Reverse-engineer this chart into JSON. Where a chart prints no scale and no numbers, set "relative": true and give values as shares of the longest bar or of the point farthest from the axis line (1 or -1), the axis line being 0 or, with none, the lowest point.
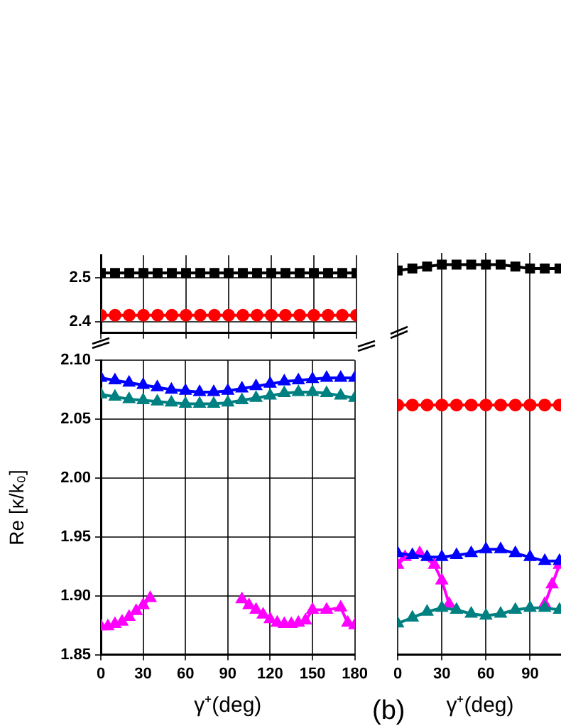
{
  "chart_data": [
    {
      "type": "line",
      "x": [
        0,
        10,
        20,
        30,
        40,
        50,
        60,
        70,
        80,
        90,
        100,
        110,
        120,
        130,
        140,
        150,
        160,
        170,
        180
      ],
      "xlim": [
        0,
        180
      ],
      "xticks": [
        0,
        30,
        60,
        90,
        120,
        150,
        180
      ],
      "ylim": [
        2.375,
        2.55
      ],
      "yticks": [
        2.4,
        2.5
      ],
      "tick_labels": "y",
      "grid": true,
      "legend": false,
      "series": [
        {
          "color": "#000000",
          "marker": "square",
          "values": [
            2.51,
            2.51,
            2.51,
            2.51,
            2.51,
            2.51,
            2.51,
            2.51,
            2.51,
            2.51,
            2.51,
            2.51,
            2.51,
            2.51,
            2.51,
            2.51,
            2.51,
            2.51,
            2.51
          ]
        },
        {
          "color": "#ff0000",
          "marker": "circle",
          "values": [
            2.415,
            2.415,
            2.415,
            2.415,
            2.415,
            2.415,
            2.415,
            2.415,
            2.415,
            2.415,
            2.415,
            2.415,
            2.415,
            2.415,
            2.415,
            2.415,
            2.415,
            2.415,
            2.415
          ]
        }
      ]
    },
    {
      "type": "line",
      "x": [
        0,
        10,
        20,
        30,
        40,
        50,
        60,
        70,
        80,
        90,
        100,
        110,
        120,
        130,
        140,
        150,
        160,
        170,
        180
      ],
      "xlim": [
        0,
        180
      ],
      "xticks": [
        0,
        30,
        60,
        90,
        120,
        150,
        180
      ],
      "ylim": [
        1.85,
        2.1
      ],
      "yticks": [
        1.85,
        {
          "value": 1.9,
          "label": "1.90"
        },
        1.95,
        {
          "value": 2,
          "label": "2.00"
        },
        2.05,
        {
          "value": 2.1,
          "label": "2.10"
        }
      ],
      "xlabel": "γ⁺(deg)",
      "ylabel": "Re [κ/k₀]",
      "grid": true,
      "legend": false,
      "series": [
        {
          "color": "#0000ff",
          "marker": "triangle",
          "values": [
            2.085,
            2.083,
            2.081,
            2.079,
            2.077,
            2.075,
            2.074,
            2.073,
            2.073,
            2.074,
            2.076,
            2.078,
            2.08,
            2.082,
            2.083,
            2.084,
            2.085,
            2.085,
            2.085
          ]
        },
        {
          "color": "#008080",
          "marker": "triangle",
          "values": [
            2.071,
            2.069,
            2.067,
            2.066,
            2.065,
            2.064,
            2.063,
            2.063,
            2.063,
            2.064,
            2.066,
            2.068,
            2.07,
            2.072,
            2.073,
            2.073,
            2.072,
            2.07,
            2.068
          ]
        },
        {
          "color": "#ff00ff",
          "marker": "triangle",
          "x": [
            0,
            5,
            10,
            15,
            20,
            25,
            30,
            35,
            60,
            100,
            105,
            110,
            115,
            120,
            125,
            130,
            135,
            140,
            145,
            150,
            160,
            170,
            175,
            180
          ],
          "values": [
            1.874,
            1.874,
            1.876,
            1.878,
            1.882,
            1.887,
            1.892,
            1.898,
            null,
            1.897,
            1.892,
            1.888,
            1.884,
            1.88,
            1.877,
            1.876,
            1.876,
            1.877,
            1.879,
            1.888,
            1.888,
            1.89,
            1.877,
            1.875
          ]
        }
      ]
    },
    {
      "type": "line",
      "relative": true,
      "x": [
        0,
        10,
        20,
        30,
        40,
        50,
        60,
        70,
        80,
        90,
        100,
        110
      ],
      "xlim": [
        0,
        112
      ],
      "xticks": [
        0,
        30,
        60,
        90
      ],
      "xlabel": "γ⁺(deg)",
      "tick_labels": "x",
      "grid": "x",
      "legend": false,
      "annotations": [
        "(b)"
      ],
      "series": [
        {
          "color": "#000000",
          "marker": "square",
          "values": [
            0.985,
            0.99,
            0.995,
            1,
            1,
            1,
            1,
            1,
            0.995,
            0.99,
            0.99,
            0.99
          ]
        },
        {
          "color": "#ff0000",
          "marker": "circle",
          "values": [
            0.64,
            0.64,
            0.64,
            0.64,
            0.64,
            0.64,
            0.64,
            0.64,
            0.64,
            0.64,
            0.64,
            0.64
          ]
        },
        {
          "color": "#0000ff",
          "marker": "triangle",
          "values": [
            0.26,
            0.255,
            0.25,
            0.25,
            0.255,
            0.26,
            0.27,
            0.27,
            0.26,
            0.25,
            0.24,
            0.24
          ]
        },
        {
          "color": "#008080",
          "marker": "triangle",
          "values": [
            0.08,
            0.095,
            0.11,
            0.12,
            0.115,
            0.105,
            0.1,
            0.105,
            0.115,
            0.12,
            0.12,
            0.115
          ]
        },
        {
          "color": "#ff00ff",
          "marker": "triangle",
          "x": [
            0,
            5,
            15,
            25,
            30,
            35,
            60,
            100,
            105,
            110
          ],
          "values": [
            0.23,
            0.25,
            0.26,
            0.23,
            0.19,
            0.13,
            null,
            0.13,
            0.18,
            0.23
          ]
        }
      ]
    }
  ]
}
